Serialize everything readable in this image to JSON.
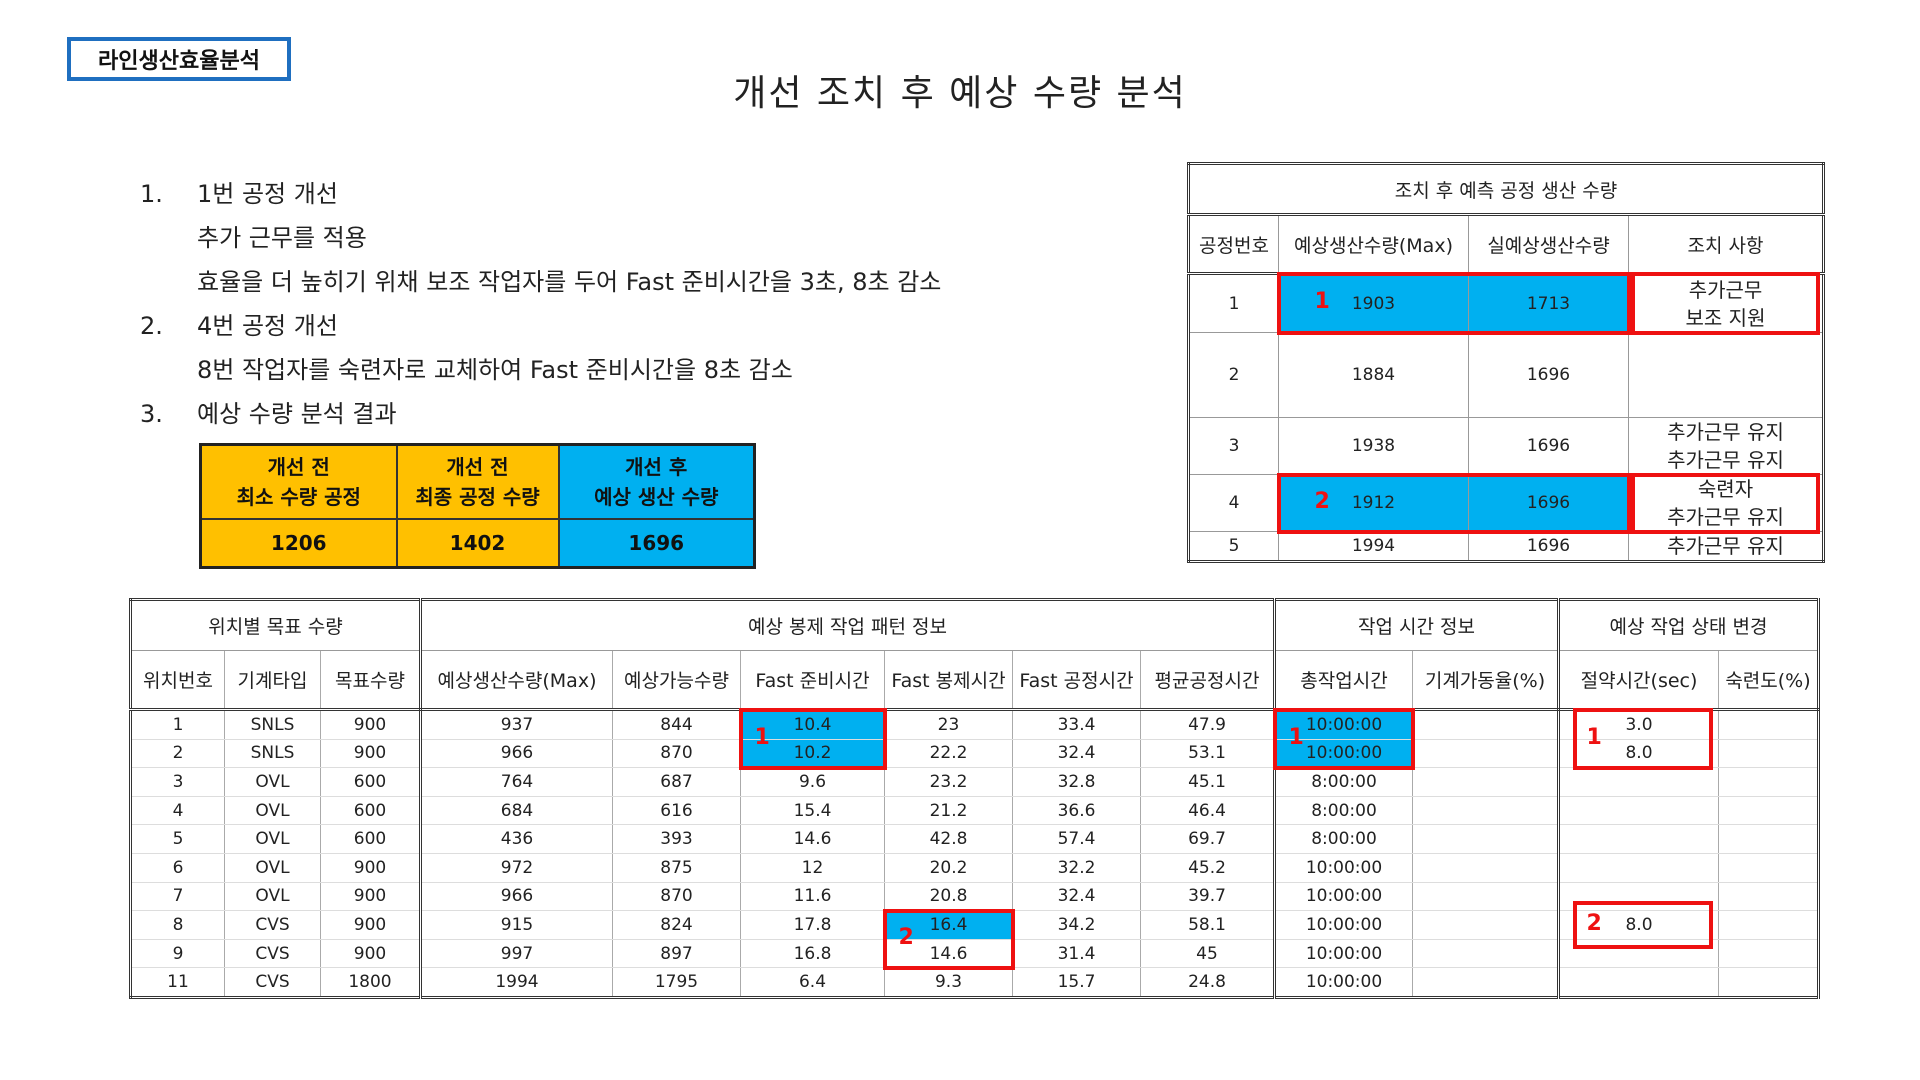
{
  "tag": "라인생산효율분석",
  "title": "개선 조치 후 예상 수량 분석",
  "items": [
    {
      "num": "1.",
      "text": "1번 공정 개선",
      "sub": [
        "추가 근무를 적용",
        "효율을 더 높히기 위채 보조 작업자를 두어 Fast 준비시간을 3초, 8초 감소"
      ]
    },
    {
      "num": "2.",
      "text": "4번 공정 개선",
      "sub": [
        "8번 작업자를 숙련자로 교체하여 Fast 준비시간을 8초 감소"
      ]
    },
    {
      "num": "3.",
      "text": "예상 수량 분석 결과",
      "sub": []
    }
  ],
  "summary": {
    "headers": [
      [
        "개선 전",
        "최소 수량 공정"
      ],
      [
        "개선 전",
        "최종 공정 수량"
      ],
      [
        "개선 후",
        "예상 생산 수량"
      ]
    ],
    "values": [
      "1206",
      "1402",
      "1696"
    ],
    "colors": [
      "#ffc000",
      "#ffc000",
      "#00b0f0"
    ]
  },
  "process_table": {
    "caption": "조치 후 예측 공정 생산 수량",
    "columns": [
      "공정번호",
      "예상생산수량(Max)",
      "실예상생산수량",
      "조치 사항"
    ],
    "rows": [
      {
        "no": "1",
        "max": "1903",
        "real": "1713",
        "note": [
          "추가근무",
          "보조 지원"
        ],
        "mark": "1"
      },
      {
        "no": "2",
        "max": "1884",
        "real": "1696",
        "note": [],
        "mark": ""
      },
      {
        "no": "3",
        "max": "1938",
        "real": "1696",
        "note": [
          "추가근무 유지",
          "추가근무 유지"
        ],
        "mark": ""
      },
      {
        "no": "4",
        "max": "1912",
        "real": "1696",
        "note": [
          "숙련자",
          "추가근무 유지"
        ],
        "mark": "2"
      },
      {
        "no": "5",
        "max": "1994",
        "real": "1696",
        "note": [
          "추가근무 유지"
        ],
        "mark": ""
      }
    ]
  },
  "main_table": {
    "groups": [
      "위치별 목표 수량",
      "예상 봉제 작업 패턴 정보",
      "작업 시간 정보",
      "예상 작업 상태 변경"
    ],
    "columns": [
      "위치번호",
      "기계타입",
      "목표수량",
      "예상생산수량(Max)",
      "예상가능수량",
      "Fast 준비시간",
      "Fast 봉제시간",
      "Fast 공정시간",
      "평균공정시간",
      "총작업시간",
      "기계가동율(%)",
      "절약시간(sec)",
      "숙련도(%)"
    ],
    "rows": [
      [
        "1",
        "SNLS",
        "900",
        "937",
        "844",
        "10.4",
        "23",
        "33.4",
        "47.9",
        "10:00:00",
        "",
        "3.0",
        ""
      ],
      [
        "2",
        "SNLS",
        "900",
        "966",
        "870",
        "10.2",
        "22.2",
        "32.4",
        "53.1",
        "10:00:00",
        "",
        "8.0",
        ""
      ],
      [
        "3",
        "OVL",
        "600",
        "764",
        "687",
        "9.6",
        "23.2",
        "32.8",
        "45.1",
        "8:00:00",
        "",
        "",
        ""
      ],
      [
        "4",
        "OVL",
        "600",
        "684",
        "616",
        "15.4",
        "21.2",
        "36.6",
        "46.4",
        "8:00:00",
        "",
        "",
        ""
      ],
      [
        "5",
        "OVL",
        "600",
        "436",
        "393",
        "14.6",
        "42.8",
        "57.4",
        "69.7",
        "8:00:00",
        "",
        "",
        ""
      ],
      [
        "6",
        "OVL",
        "900",
        "972",
        "875",
        "12",
        "20.2",
        "32.2",
        "45.2",
        "10:00:00",
        "",
        "",
        ""
      ],
      [
        "7",
        "OVL",
        "900",
        "966",
        "870",
        "11.6",
        "20.8",
        "32.4",
        "39.7",
        "10:00:00",
        "",
        "",
        ""
      ],
      [
        "8",
        "CVS",
        "900",
        "915",
        "824",
        "17.8",
        "16.4",
        "34.2",
        "58.1",
        "10:00:00",
        "",
        "8.0",
        ""
      ],
      [
        "9",
        "CVS",
        "900",
        "997",
        "897",
        "16.8",
        "14.6",
        "31.4",
        "45",
        "10:00:00",
        "",
        "",
        ""
      ],
      [
        "11",
        "CVS",
        "1800",
        "1994",
        "1795",
        "6.4",
        "9.3",
        "15.7",
        "24.8",
        "10:00:00",
        "",
        "",
        ""
      ]
    ],
    "highlights": [
      [
        0,
        5
      ],
      [
        1,
        5
      ],
      [
        0,
        9
      ],
      [
        1,
        9
      ],
      [
        7,
        6
      ]
    ],
    "marks": [
      "1",
      "1",
      "1",
      "2",
      "2"
    ]
  }
}
